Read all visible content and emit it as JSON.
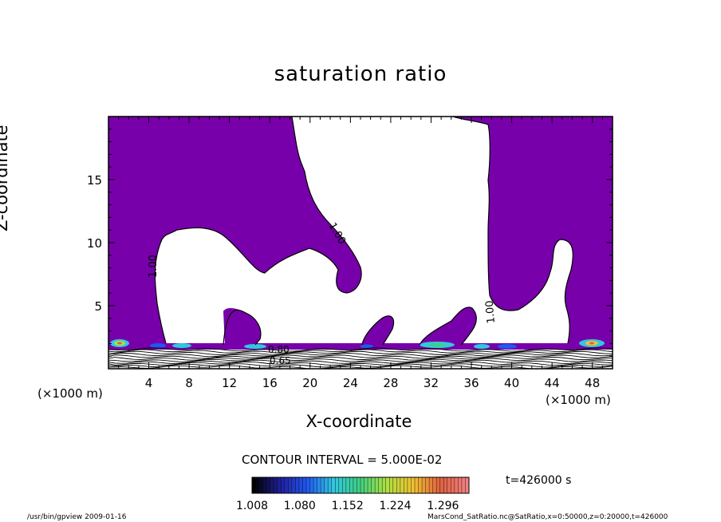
{
  "chart_data": {
    "type": "contour",
    "title": "saturation ratio",
    "xlabel": "X-coordinate",
    "ylabel": "Z-coordinate",
    "x_unit": "(×1000 m)",
    "xlim": [
      0,
      50
    ],
    "ylim": [
      0,
      20
    ],
    "x_ticks": [
      4,
      8,
      12,
      16,
      20,
      24,
      28,
      32,
      36,
      40,
      44,
      48
    ],
    "y_ticks": [
      5,
      10,
      15
    ],
    "contour_interval_text": "CONTOUR INTERVAL = 5.000E-02",
    "contour_labels": [
      "1.00",
      "1.00",
      "1.00",
      "0.80",
      "0.65"
    ],
    "colorbar": {
      "tick_labels": [
        "1.008",
        "1.080",
        "1.152",
        "1.224",
        "1.296"
      ],
      "range": [
        1.008,
        1.296
      ],
      "colors": [
        "#000000",
        "#20209c",
        "#2058f0",
        "#30c8e0",
        "#40d080",
        "#b0e040",
        "#f0c030",
        "#e06040",
        "#f08080"
      ]
    },
    "fill_color_saturated": "#7700aa",
    "time_text": "t=426000 s"
  },
  "footer": {
    "left": "/usr/bin/gpview  2009-01-16",
    "right": "MarsCond_SatRatio.nc@SatRatio,x=0:50000,z=0:20000,t=426000"
  }
}
